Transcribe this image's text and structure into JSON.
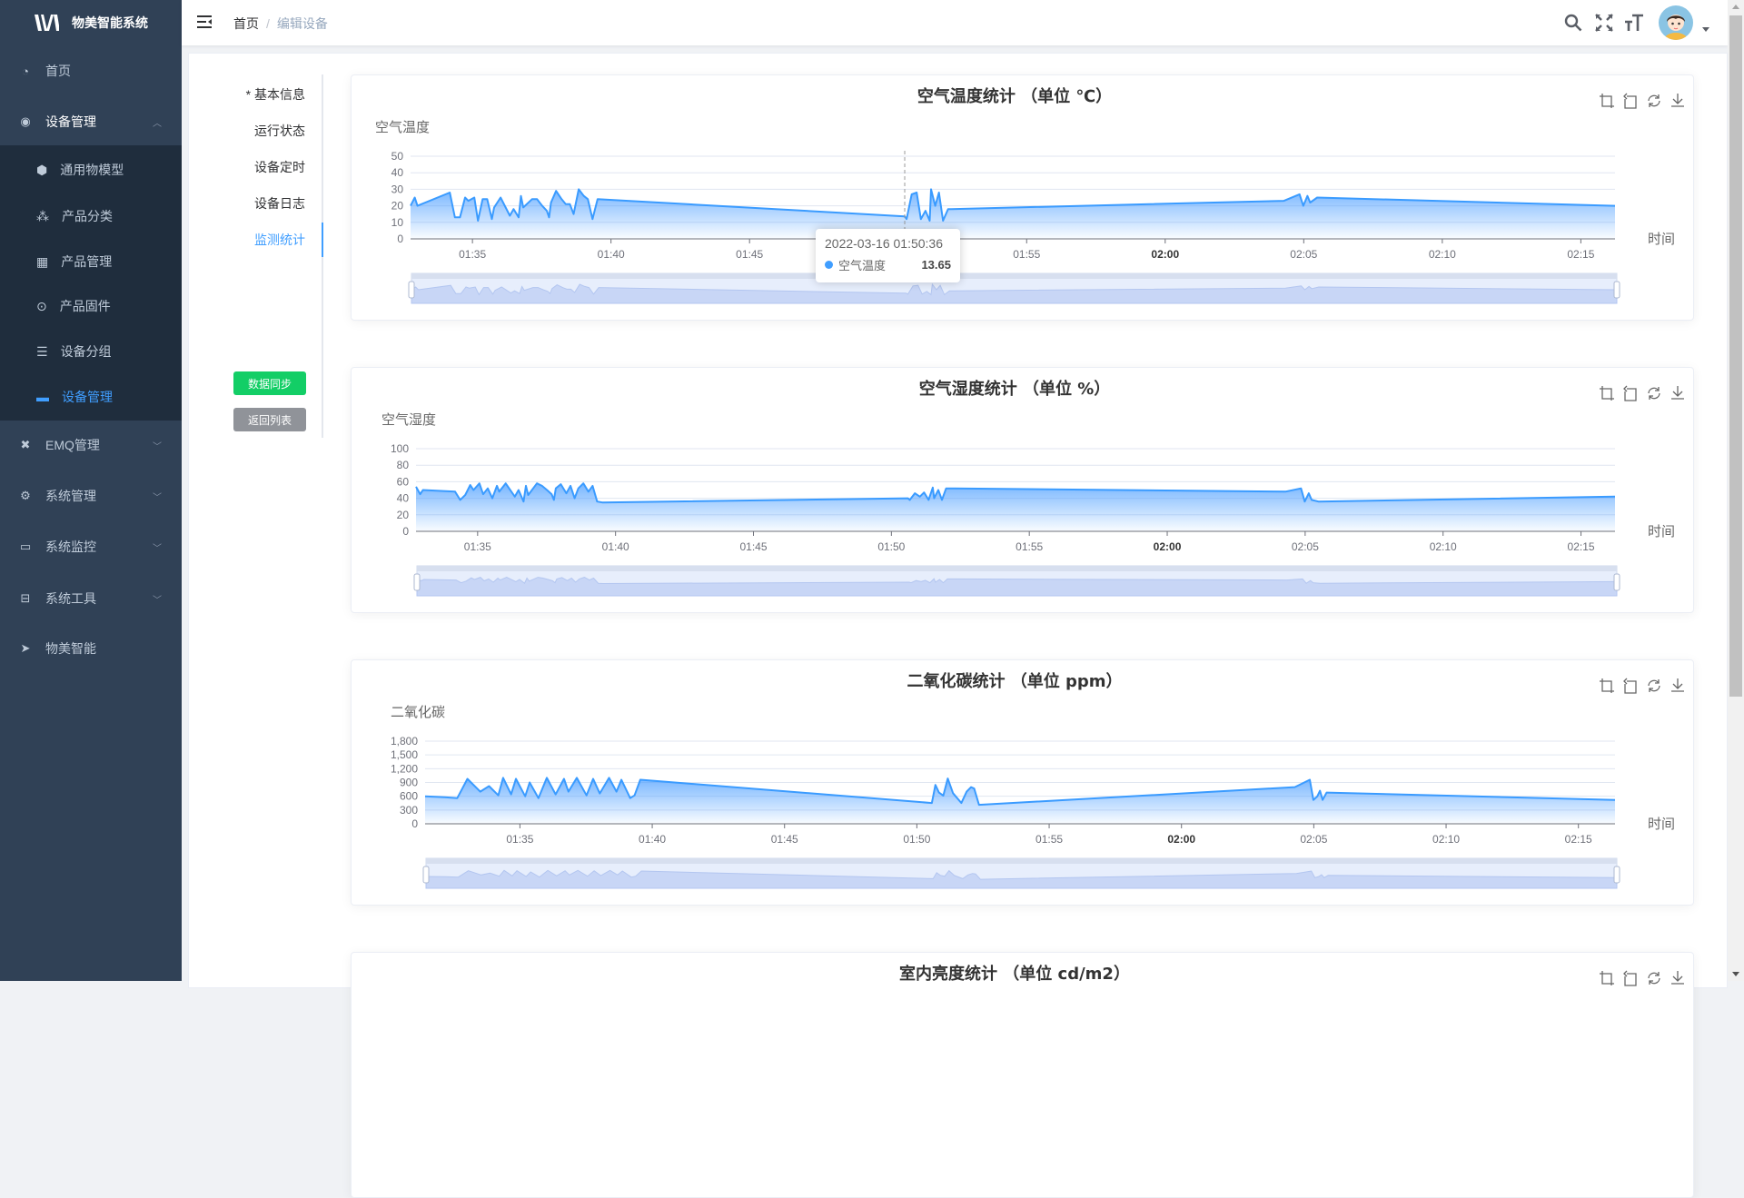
{
  "app": {
    "title": "物美智能系统"
  },
  "sidebar": {
    "items": [
      {
        "label": "首页",
        "icon": "dashboard-icon"
      },
      {
        "label": "设备管理",
        "icon": "device-icon",
        "expanded": true
      },
      {
        "label": "EMQ管理",
        "icon": "emq-icon"
      },
      {
        "label": "系统管理",
        "icon": "gear-icon"
      },
      {
        "label": "系统监控",
        "icon": "monitor-icon"
      },
      {
        "label": "系统工具",
        "icon": "toolbox-icon"
      },
      {
        "label": "物美智能",
        "icon": "paper-plane-icon"
      }
    ],
    "sub_items": [
      {
        "label": "通用物模型",
        "icon": "cube-icon"
      },
      {
        "label": "产品分类",
        "icon": "tree-icon"
      },
      {
        "label": "产品管理",
        "icon": "grid-icon"
      },
      {
        "label": "产品固件",
        "icon": "firmware-icon"
      },
      {
        "label": "设备分组",
        "icon": "group-icon"
      },
      {
        "label": "设备管理",
        "icon": "list-icon",
        "active": true
      }
    ]
  },
  "header": {
    "breadcrumb": [
      "首页",
      "编辑设备"
    ],
    "separator": "/"
  },
  "tabs": [
    "* 基本信息",
    "运行状态",
    "设备定时",
    "设备日志",
    "监测统计"
  ],
  "active_tab": "监测统计",
  "buttons": {
    "sync": "数据同步",
    "back": "返回列表"
  },
  "colors": {
    "accent": "#409eff",
    "sync": "#13ce66",
    "back": "#909399",
    "sidebar": "#304156",
    "line": "#3a9bff"
  },
  "tooltip": {
    "time": "2022-03-16 01:50:36",
    "series": "空气温度",
    "value": "13.65"
  },
  "chart_data": [
    {
      "type": "area",
      "title": "空气温度统计 （单位 ℃）",
      "ylabel": "空气温度",
      "xlabel": "时间",
      "ylim": [
        0,
        50
      ],
      "yticks": [
        "0",
        "10",
        "20",
        "30",
        "40",
        "50"
      ],
      "xlim": [
        "01:32:46",
        "02:16:14"
      ],
      "xticks": [
        "01:35",
        "01:40",
        "01:45",
        "01:50",
        "01:55",
        "02:00",
        "02:05",
        "02:10",
        "02:15"
      ],
      "grid": true,
      "datazoom": true,
      "pointer": "01:50:36",
      "points": [
        [
          "01:32:46",
          20
        ],
        [
          "01:32:55",
          25
        ],
        [
          "01:33:01",
          20
        ],
        [
          "01:34:11",
          28
        ],
        [
          "01:34:22",
          13
        ],
        [
          "01:34:33",
          13
        ],
        [
          "01:34:44",
          25
        ],
        [
          "01:34:51",
          23
        ],
        [
          "01:35:04",
          25
        ],
        [
          "01:35:12",
          11
        ],
        [
          "01:35:22",
          24
        ],
        [
          "01:35:32",
          24
        ],
        [
          "01:35:42",
          12
        ],
        [
          "01:35:47",
          19
        ],
        [
          "01:36:01",
          25
        ],
        [
          "01:36:21",
          14
        ],
        [
          "01:36:29",
          18
        ],
        [
          "01:36:40",
          13
        ],
        [
          "01:36:45",
          26
        ],
        [
          "01:36:50",
          19
        ],
        [
          "01:37:09",
          24
        ],
        [
          "01:37:20",
          24
        ],
        [
          "01:37:31",
          20
        ],
        [
          "01:37:41",
          17
        ],
        [
          "01:37:46",
          13
        ],
        [
          "01:37:50",
          22
        ],
        [
          "01:38:01",
          29
        ],
        [
          "01:38:13",
          24
        ],
        [
          "01:38:22",
          21
        ],
        [
          "01:38:31",
          21
        ],
        [
          "01:38:39",
          15
        ],
        [
          "01:38:50",
          30
        ],
        [
          "01:39:01",
          26
        ],
        [
          "01:39:10",
          24
        ],
        [
          "01:39:20",
          12
        ],
        [
          "01:39:31",
          24
        ],
        [
          "01:50:36",
          13.65
        ],
        [
          "01:50:40",
          12
        ],
        [
          "01:50:51",
          27
        ],
        [
          "01:51:02",
          28
        ],
        [
          "01:51:11",
          12
        ],
        [
          "01:51:21",
          17
        ],
        [
          "01:51:30",
          11
        ],
        [
          "01:51:33",
          30
        ],
        [
          "01:51:42",
          20
        ],
        [
          "01:51:50",
          28
        ],
        [
          "01:51:59",
          11
        ],
        [
          "01:52:10",
          18
        ],
        [
          "01:52:17",
          18
        ],
        [
          "02:04:17",
          23
        ],
        [
          "02:04:51",
          27
        ],
        [
          "02:04:59",
          20
        ],
        [
          "02:05:08",
          26
        ],
        [
          "02:05:14",
          22
        ],
        [
          "02:05:29",
          25
        ],
        [
          "02:16:14",
          20
        ]
      ]
    },
    {
      "type": "area",
      "title": "空气湿度统计 （单位 %）",
      "ylabel": "空气湿度",
      "xlabel": "时间",
      "ylim": [
        0,
        100
      ],
      "yticks": [
        "0",
        "20",
        "40",
        "60",
        "80",
        "100"
      ],
      "xlim": [
        "01:32:46",
        "02:16:14"
      ],
      "xticks": [
        "01:35",
        "01:40",
        "01:45",
        "01:50",
        "01:55",
        "02:00",
        "02:05",
        "02:10",
        "02:15"
      ],
      "grid": true,
      "datazoom": true,
      "points": [
        [
          "01:32:46",
          54
        ],
        [
          "01:32:55",
          45
        ],
        [
          "01:33:01",
          50
        ],
        [
          "01:34:11",
          48
        ],
        [
          "01:34:22",
          38
        ],
        [
          "01:34:33",
          44
        ],
        [
          "01:34:44",
          56
        ],
        [
          "01:34:51",
          50
        ],
        [
          "01:35:04",
          58
        ],
        [
          "01:35:12",
          45
        ],
        [
          "01:35:22",
          52
        ],
        [
          "01:35:32",
          40
        ],
        [
          "01:35:42",
          55
        ],
        [
          "01:35:47",
          48
        ],
        [
          "01:36:01",
          58
        ],
        [
          "01:36:21",
          42
        ],
        [
          "01:36:29",
          50
        ],
        [
          "01:36:40",
          36
        ],
        [
          "01:36:45",
          55
        ],
        [
          "01:36:50",
          44
        ],
        [
          "01:37:09",
          58
        ],
        [
          "01:37:20",
          55
        ],
        [
          "01:37:31",
          50
        ],
        [
          "01:37:41",
          45
        ],
        [
          "01:37:46",
          38
        ],
        [
          "01:37:50",
          52
        ],
        [
          "01:38:01",
          57
        ],
        [
          "01:38:13",
          46
        ],
        [
          "01:38:22",
          55
        ],
        [
          "01:38:31",
          40
        ],
        [
          "01:38:39",
          52
        ],
        [
          "01:38:50",
          58
        ],
        [
          "01:39:01",
          48
        ],
        [
          "01:39:10",
          55
        ],
        [
          "01:39:20",
          36
        ],
        [
          "01:39:31",
          35
        ],
        [
          "01:50:36",
          40
        ],
        [
          "01:50:40",
          38
        ],
        [
          "01:50:51",
          46
        ],
        [
          "01:51:02",
          42
        ],
        [
          "01:51:11",
          47
        ],
        [
          "01:51:21",
          38
        ],
        [
          "01:51:30",
          53
        ],
        [
          "01:51:33",
          40
        ],
        [
          "01:51:42",
          50
        ],
        [
          "01:51:50",
          38
        ],
        [
          "01:51:59",
          52
        ],
        [
          "01:52:10",
          52
        ],
        [
          "01:52:17",
          52
        ],
        [
          "02:04:17",
          48
        ],
        [
          "02:04:51",
          52
        ],
        [
          "02:04:59",
          36
        ],
        [
          "02:05:08",
          46
        ],
        [
          "02:05:14",
          38
        ],
        [
          "02:05:29",
          36
        ],
        [
          "02:16:14",
          42
        ]
      ]
    },
    {
      "type": "area",
      "title": "二氧化碳统计 （单位 ppm）",
      "ylabel": "二氧化碳",
      "xlabel": "时间",
      "ylim": [
        0,
        1800
      ],
      "yticks": [
        "0",
        "300",
        "600",
        "900",
        "1,200",
        "1,500",
        "1,800"
      ],
      "xlim": [
        "01:31:25",
        "02:16:23"
      ],
      "xticks": [
        "01:35",
        "01:40",
        "01:45",
        "01:50",
        "01:55",
        "02:00",
        "02:05",
        "02:10",
        "02:15"
      ],
      "grid": true,
      "datazoom": true,
      "points": [
        [
          "01:31:25",
          600
        ],
        [
          "01:32:10",
          580
        ],
        [
          "01:32:38",
          560
        ],
        [
          "01:33:01",
          980
        ],
        [
          "01:33:30",
          700
        ],
        [
          "01:33:50",
          820
        ],
        [
          "01:34:11",
          620
        ],
        [
          "01:34:22",
          1000
        ],
        [
          "01:34:40",
          640
        ],
        [
          "01:34:51",
          980
        ],
        [
          "01:35:12",
          600
        ],
        [
          "01:35:22",
          900
        ],
        [
          "01:35:42",
          560
        ],
        [
          "01:36:01",
          1000
        ],
        [
          "01:36:21",
          640
        ],
        [
          "01:36:40",
          980
        ],
        [
          "01:36:50",
          700
        ],
        [
          "01:37:09",
          1000
        ],
        [
          "01:37:31",
          620
        ],
        [
          "01:37:46",
          980
        ],
        [
          "01:38:01",
          660
        ],
        [
          "01:38:22",
          1000
        ],
        [
          "01:38:39",
          700
        ],
        [
          "01:38:50",
          960
        ],
        [
          "01:39:10",
          560
        ],
        [
          "01:39:20",
          620
        ],
        [
          "01:39:33",
          960
        ],
        [
          "01:50:34",
          453
        ],
        [
          "01:50:42",
          847
        ],
        [
          "01:50:50",
          680
        ],
        [
          "01:51:00",
          613
        ],
        [
          "01:51:10",
          987
        ],
        [
          "01:51:22",
          667
        ],
        [
          "01:51:41",
          453
        ],
        [
          "01:51:53",
          700
        ],
        [
          "01:52:03",
          800
        ],
        [
          "01:52:10",
          767
        ],
        [
          "01:52:21",
          413
        ],
        [
          "02:04:17",
          800
        ],
        [
          "02:04:51",
          960
        ],
        [
          "02:04:59",
          520
        ],
        [
          "02:05:08",
          600
        ],
        [
          "02:05:14",
          720
        ],
        [
          "02:05:20",
          520
        ],
        [
          "02:05:29",
          680
        ],
        [
          "02:16:23",
          520
        ]
      ]
    },
    {
      "type": "area",
      "title": "室内亮度统计 （单位 cd/m2）"
    }
  ]
}
